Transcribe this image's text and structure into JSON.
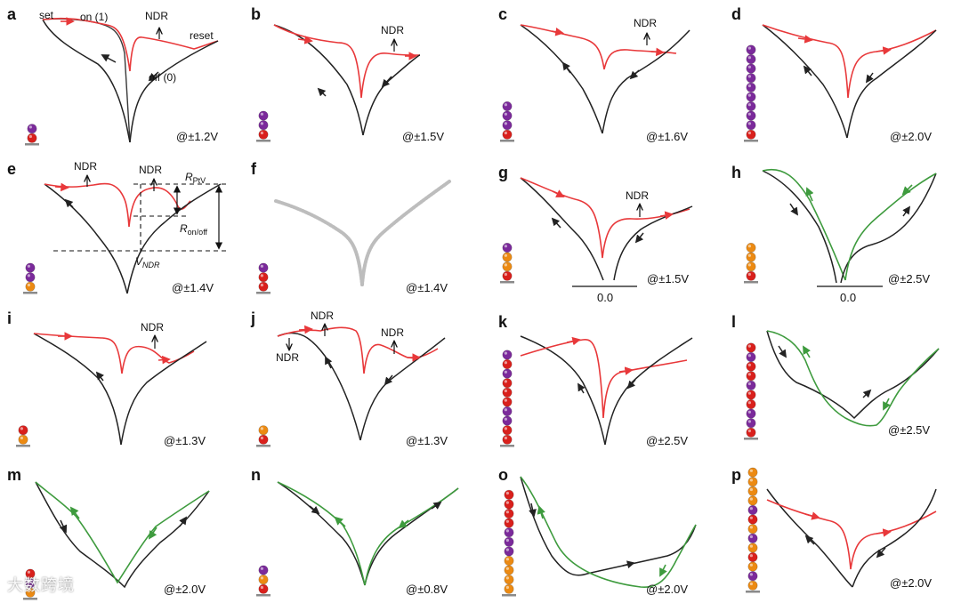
{
  "colors": {
    "red": "#e8383a",
    "black": "#222222",
    "green": "#3e9b3e",
    "gray": "#bdbdbd",
    "purple": "#7b2a9b",
    "redBall": "#d9201c",
    "orange": "#ec8a12",
    "base": "#8a8a8a"
  },
  "panels": [
    {
      "id": "a",
      "voltage": "@±1.2V",
      "stack": [
        "purple",
        "red"
      ],
      "annotations": [
        {
          "text": "set"
        },
        {
          "text": "on (1)"
        },
        {
          "text": "NDR"
        },
        {
          "text": "reset"
        },
        {
          "text": "off (0)"
        }
      ]
    },
    {
      "id": "b",
      "voltage": "@±1.5V",
      "stack": [
        "purple",
        "purple",
        "red"
      ],
      "annotations": [
        {
          "text": "NDR"
        }
      ]
    },
    {
      "id": "c",
      "voltage": "@±1.6V",
      "stack": [
        "purple",
        "purple",
        "purple",
        "red"
      ],
      "annotations": [
        {
          "text": "NDR"
        }
      ]
    },
    {
      "id": "d",
      "voltage": "@±2.0V",
      "stack": [
        "purple",
        "purple",
        "purple",
        "purple",
        "purple",
        "purple",
        "purple",
        "purple",
        "purple",
        "red"
      ],
      "annotations": []
    },
    {
      "id": "e",
      "voltage": "@±1.4V",
      "stack": [
        "purple",
        "purple",
        "orange"
      ],
      "annotations": [
        {
          "text": "NDR"
        },
        {
          "text": "NDR"
        }
      ],
      "labels": {
        "rptv_main": "R",
        "rptv_sub": "PtV",
        "ronoff_main": "R",
        "ronoff_sub": "on/off",
        "vndr_main": "V",
        "vndr_sub": "NDR"
      }
    },
    {
      "id": "f",
      "voltage": "@±1.4V",
      "stack": [
        "purple",
        "red",
        "red"
      ],
      "annotations": []
    },
    {
      "id": "g",
      "voltage": "@±1.5V",
      "stack": [
        "purple",
        "orange",
        "orange",
        "red"
      ],
      "annotations": [
        {
          "text": "NDR"
        }
      ],
      "zero": "0.0"
    },
    {
      "id": "h",
      "voltage": "@±2.5V",
      "stack": [
        "orange",
        "orange",
        "orange",
        "red"
      ],
      "annotations": [],
      "zero": "0.0"
    },
    {
      "id": "i",
      "voltage": "@±1.3V",
      "stack": [
        "red",
        "orange"
      ],
      "annotations": [
        {
          "text": "NDR"
        }
      ]
    },
    {
      "id": "j",
      "voltage": "@±1.3V",
      "stack": [
        "orange",
        "red"
      ],
      "annotations": [
        {
          "text": "NDR"
        },
        {
          "text": "NDR"
        },
        {
          "text": "NDR"
        }
      ]
    },
    {
      "id": "k",
      "voltage": "@±2.5V",
      "stack": [
        "purple",
        "red",
        "purple",
        "red",
        "red",
        "red",
        "purple",
        "purple",
        "red",
        "red"
      ],
      "annotations": []
    },
    {
      "id": "l",
      "voltage": "@±2.5V",
      "stack": [
        "red",
        "purple",
        "red",
        "red",
        "purple",
        "red",
        "red",
        "purple",
        "purple",
        "red"
      ],
      "annotations": []
    },
    {
      "id": "m",
      "voltage": "@±2.0V",
      "stack": [
        "red",
        "purple",
        "orange"
      ],
      "annotations": []
    },
    {
      "id": "n",
      "voltage": "@±0.8V",
      "stack": [
        "purple",
        "orange",
        "red"
      ],
      "annotations": []
    },
    {
      "id": "o",
      "voltage": "@±2.0V",
      "stack": [
        "red",
        "red",
        "red",
        "red",
        "purple",
        "purple",
        "purple",
        "orange",
        "orange",
        "orange",
        "orange"
      ],
      "annotations": []
    },
    {
      "id": "p",
      "voltage": "@±2.0V",
      "stack": [
        "orange",
        "orange",
        "orange",
        "orange",
        "purple",
        "red",
        "orange",
        "purple",
        "orange",
        "red",
        "orange",
        "purple",
        "orange"
      ],
      "annotations": []
    }
  ],
  "watermark": "大数跨境"
}
